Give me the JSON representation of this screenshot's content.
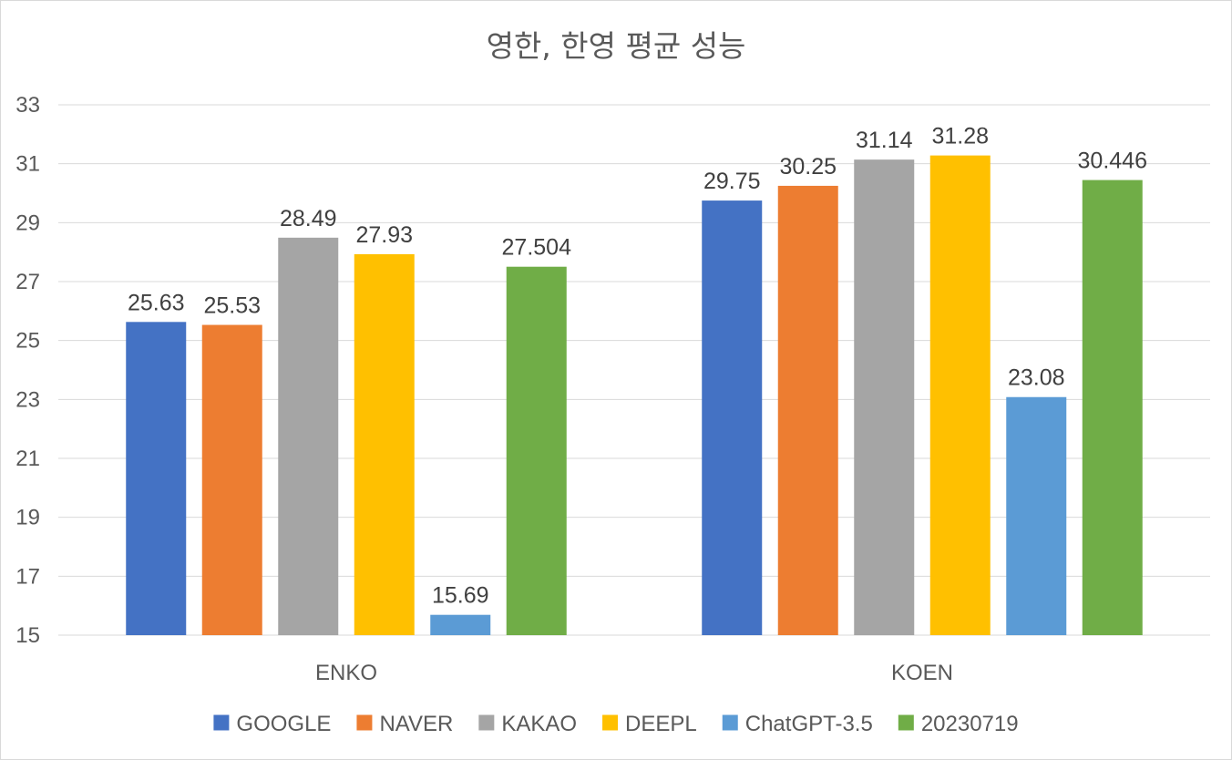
{
  "chart_data": {
    "type": "bar",
    "title": "영한, 한영 평균 성능",
    "categories": [
      "ENKO",
      "KOEN"
    ],
    "series": [
      {
        "name": "GOOGLE",
        "color": "#4472C4",
        "values": [
          25.63,
          29.75
        ],
        "labels": [
          "25.63",
          "29.75"
        ]
      },
      {
        "name": "NAVER",
        "color": "#ED7D31",
        "values": [
          25.53,
          30.25
        ],
        "labels": [
          "25.53",
          "30.25"
        ]
      },
      {
        "name": "KAKAO",
        "color": "#A5A5A5",
        "values": [
          28.49,
          31.14
        ],
        "labels": [
          "28.49",
          "31.14"
        ]
      },
      {
        "name": "DEEPL",
        "color": "#FFC000",
        "values": [
          27.93,
          31.28
        ],
        "labels": [
          "27.93",
          "31.28"
        ]
      },
      {
        "name": "ChatGPT-3.5",
        "color": "#5B9BD5",
        "values": [
          15.69,
          23.08
        ],
        "labels": [
          "15.69",
          "23.08"
        ]
      },
      {
        "name": "20230719",
        "color": "#70AD47",
        "values": [
          27.504,
          30.446
        ],
        "labels": [
          "27.504",
          "30.446"
        ]
      }
    ],
    "ylim": [
      15,
      33
    ],
    "yticks": [
      "15",
      "17",
      "19",
      "21",
      "23",
      "25",
      "27",
      "29",
      "31",
      "33"
    ],
    "grid": true,
    "legend_position": "bottom"
  }
}
